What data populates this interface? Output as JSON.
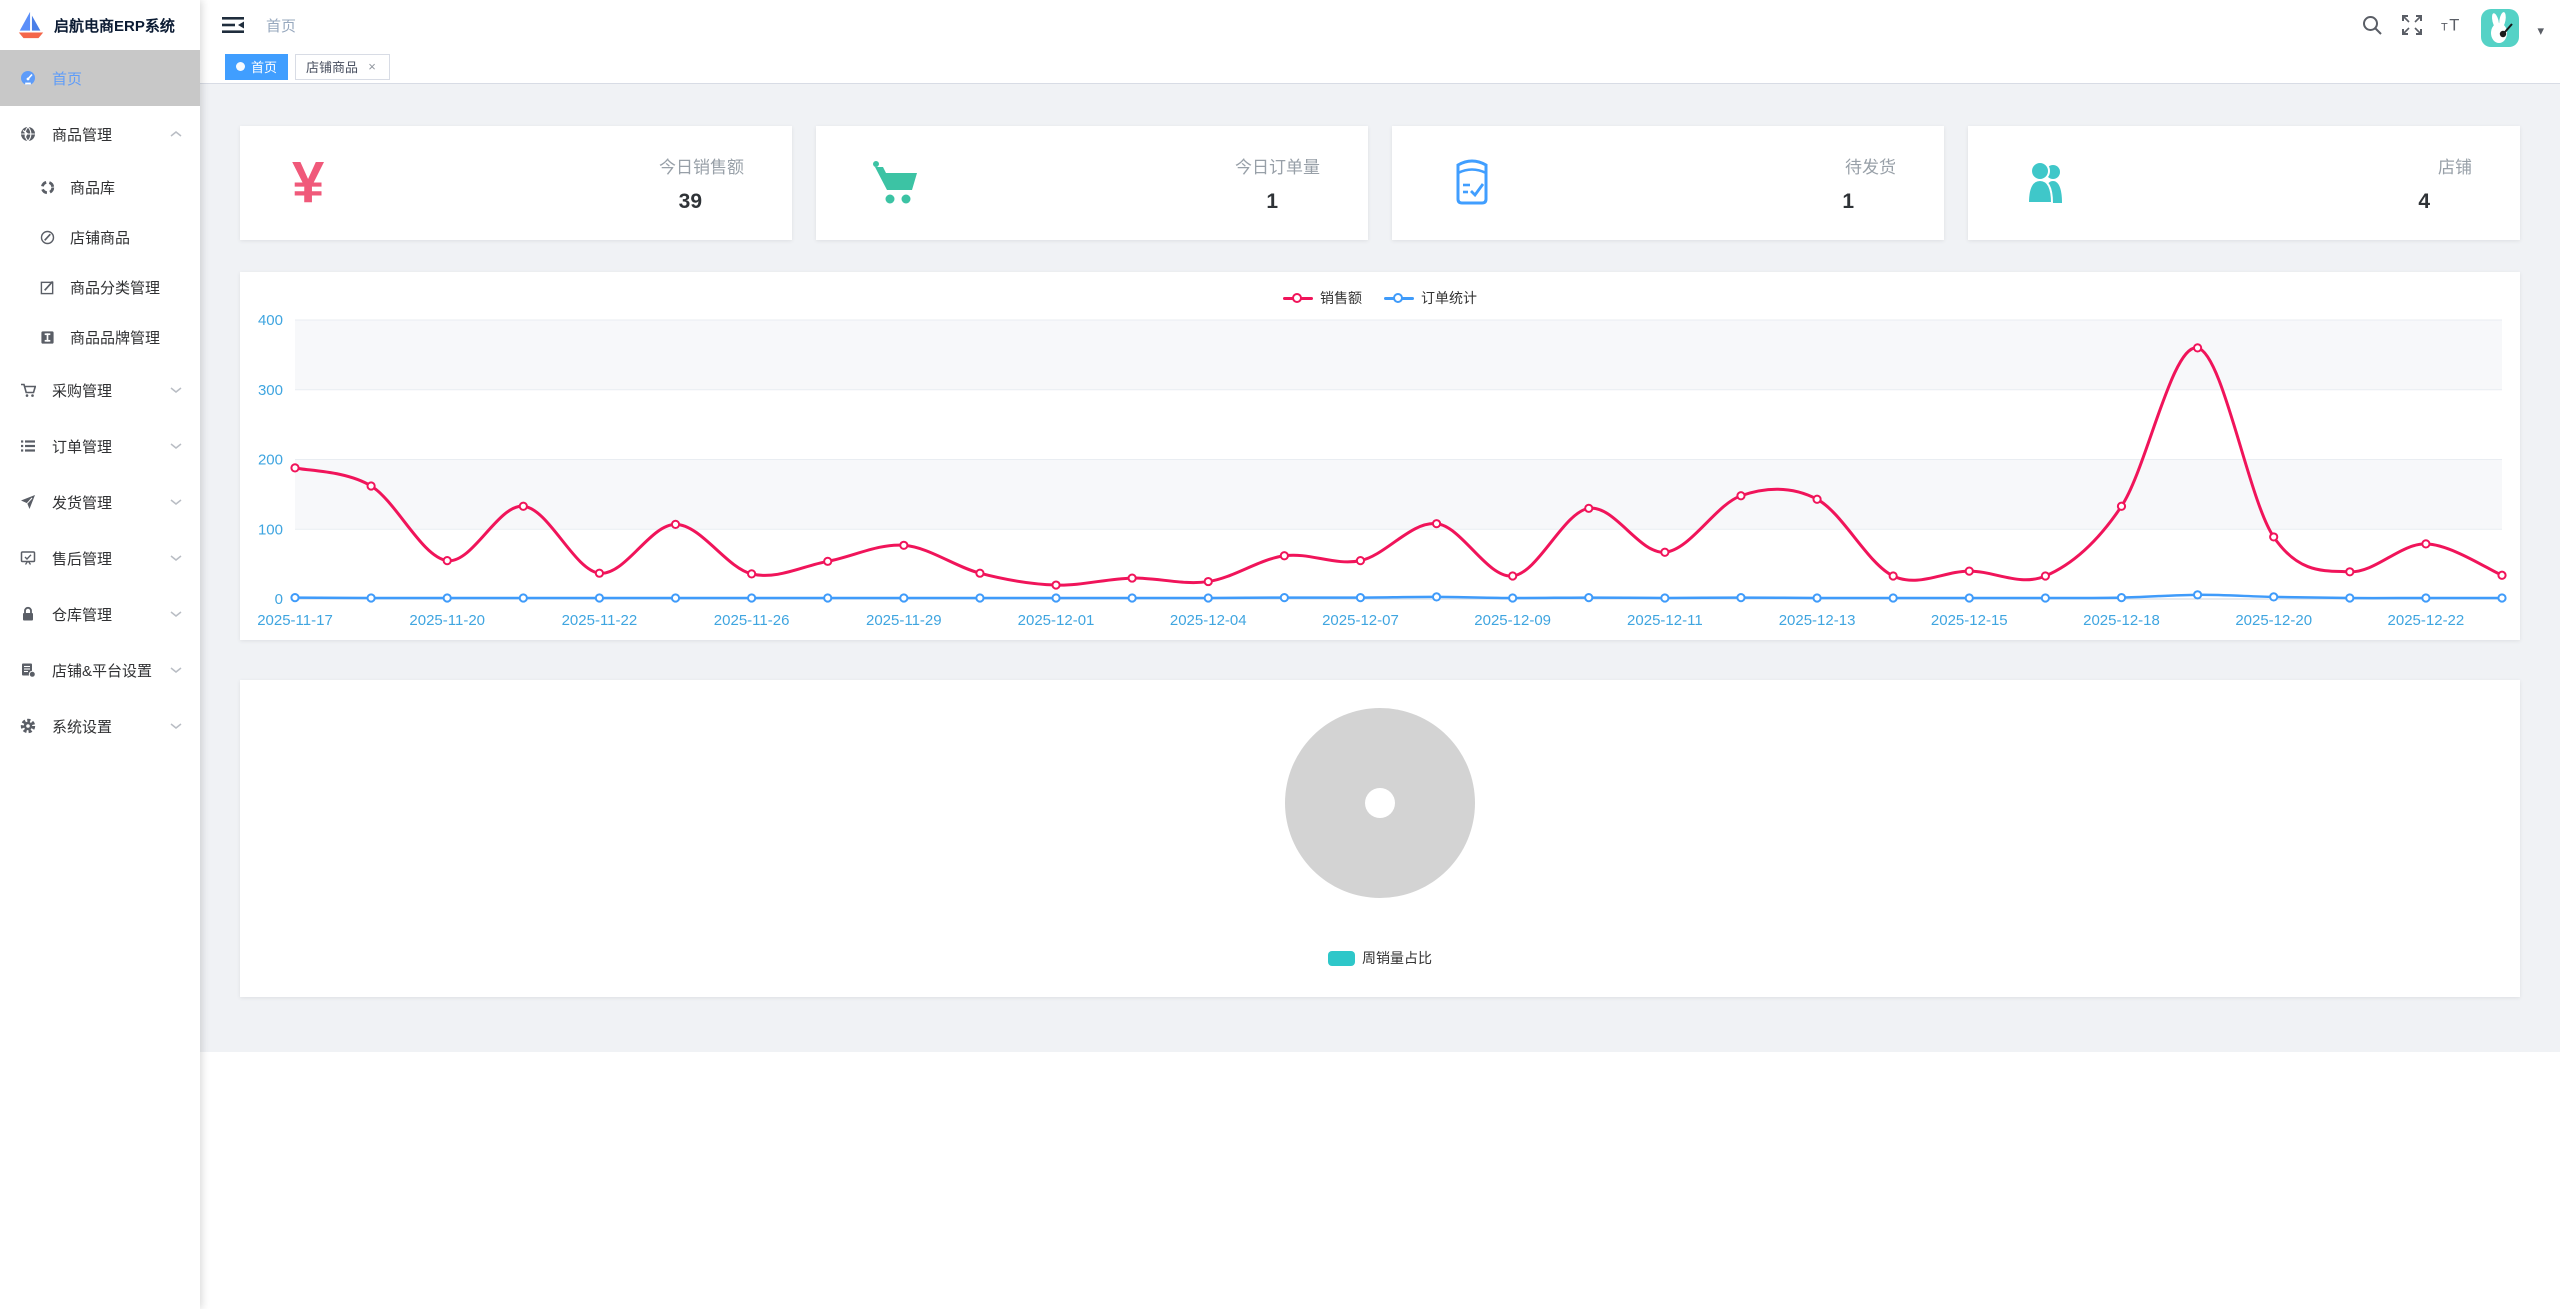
{
  "app": {
    "title": "启航电商ERP系统"
  },
  "navbar": {
    "breadcrumb": "首页",
    "right_icons": [
      "search-icon",
      "fullscreen-icon",
      "font-size-icon",
      "avatar",
      "caret-down-icon"
    ]
  },
  "icons": {
    "yen": "¥",
    "close": "×",
    "caret": "▾",
    "font_large": "T",
    "font_small": "T"
  },
  "tabs": [
    {
      "label": "首页",
      "active": true
    },
    {
      "label": "店铺商品",
      "active": false,
      "closable": true
    }
  ],
  "sidebar": {
    "items": [
      {
        "label": "首页",
        "icon": "dashboard-icon",
        "active": true
      },
      {
        "label": "商品管理",
        "icon": "globe-icon",
        "expanded": true,
        "children": [
          "商品库",
          "店铺商品",
          "商品分类管理",
          "商品品牌管理"
        ]
      },
      {
        "label": "采购管理",
        "icon": "cart-icon"
      },
      {
        "label": "订单管理",
        "icon": "list-icon"
      },
      {
        "label": "发货管理",
        "icon": "send-icon"
      },
      {
        "label": "售后管理",
        "icon": "aftersale-icon"
      },
      {
        "label": "仓库管理",
        "icon": "lock-icon"
      },
      {
        "label": "店铺&平台设置",
        "icon": "shop-platform-icon"
      },
      {
        "label": "系统设置",
        "icon": "gear-icon"
      }
    ]
  },
  "stat_cards": [
    {
      "label": "今日销售额",
      "value": "39",
      "icon": "yen-icon",
      "icon_color": "#f0597a"
    },
    {
      "label": "今日订单量",
      "value": "1",
      "icon": "cart-icon",
      "icon_color": "#3cc3a4"
    },
    {
      "label": "待发货",
      "value": "1",
      "icon": "package-check-icon",
      "icon_color": "#409eff"
    },
    {
      "label": "店铺",
      "value": "4",
      "icon": "people-icon",
      "icon_color": "#3fc7c9"
    }
  ],
  "colors": {
    "primary": "#409eff",
    "sales_line": "#f0145a",
    "orders_line": "#3f9bfa",
    "axis_label": "#3fa5e0",
    "content_bg": "#f0f2f5",
    "sidebar_active_bg": "#c8c8c8",
    "sidebar_active_text": "#5e9cf9",
    "donut_gray": "#d3d3d3",
    "donut_legend_teal": "#2ec7c9",
    "avatar_bg": "#55d2c6"
  },
  "chart_data": [
    {
      "type": "line",
      "title": "",
      "legend": [
        "销售额",
        "订单统计"
      ],
      "legend_position": "top",
      "x_tick_labels": [
        "2025-11-17",
        "2025-11-20",
        "2025-11-22",
        "2025-11-26",
        "2025-11-29",
        "2025-12-01",
        "2025-12-04",
        "2025-12-07",
        "2025-12-09",
        "2025-12-11",
        "2025-12-13",
        "2025-12-15",
        "2025-12-18",
        "2025-12-20",
        "2025-12-22"
      ],
      "points_per_tick": 2,
      "series": [
        {
          "name": "销售额",
          "color": "#f0145a",
          "values": [
            188,
            162,
            55,
            133,
            37,
            107,
            36,
            54,
            77,
            37,
            20,
            30,
            25,
            62,
            55,
            108,
            33,
            130,
            67,
            148,
            143,
            33,
            40,
            33,
            133,
            360,
            89,
            39,
            79,
            34
          ]
        },
        {
          "name": "订单统计",
          "color": "#3f9bfa",
          "values": [
            2,
            1,
            1,
            1,
            1,
            1,
            1,
            1,
            1,
            1,
            1,
            1,
            1,
            2,
            2,
            3,
            1,
            2,
            1,
            2,
            1,
            1,
            1,
            1,
            2,
            6,
            3,
            1,
            1,
            1
          ]
        }
      ],
      "ylim": [
        0,
        400
      ],
      "y_ticks": [
        0,
        100,
        200,
        300,
        400
      ],
      "grid": true,
      "split_area": true,
      "smooth": true
    },
    {
      "type": "pie",
      "title": "",
      "legend": [
        "周销量占比"
      ],
      "legend_position": "bottom",
      "slices": [],
      "placeholder": true,
      "placeholder_color": "#d3d3d3",
      "inner_radius_ratio": 0.16
    }
  ]
}
